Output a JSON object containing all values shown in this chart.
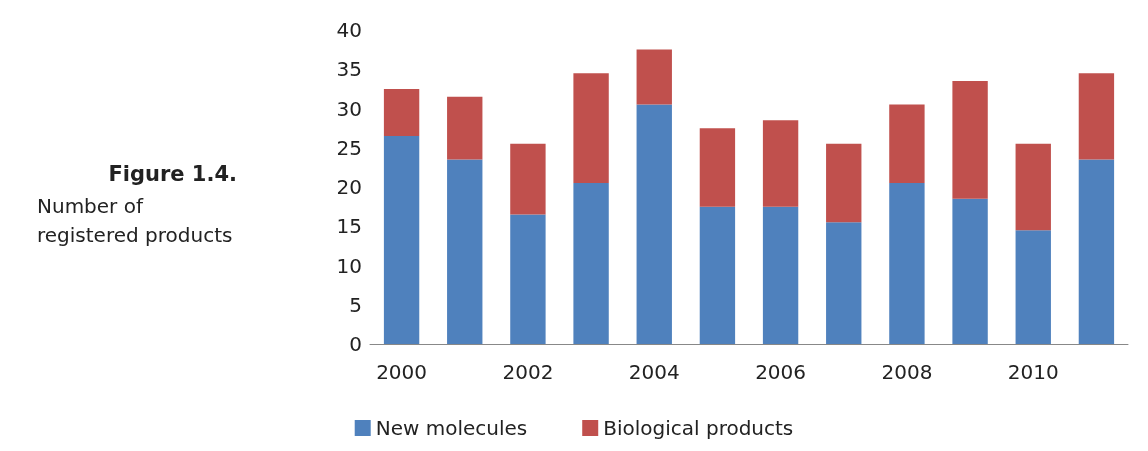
{
  "chart_data": {
    "type": "bar",
    "title": "Figure 1.4.",
    "subtitle": "Number of registered products",
    "stacked": true,
    "categories": [
      "2000",
      null,
      "2002",
      null,
      "2004",
      null,
      "2006",
      null,
      "2008",
      null,
      "2010",
      null
    ],
    "series": [
      {
        "name": "New molecules",
        "color": "#4f81bd",
        "values": [
          26.5,
          23.5,
          16.5,
          20.5,
          30.5,
          17.5,
          17.5,
          15.5,
          20.5,
          18.5,
          14.5,
          23.5
        ]
      },
      {
        "name": "Biological products",
        "color": "#c0504d",
        "values": [
          6,
          8,
          9,
          14,
          7,
          10,
          11,
          10,
          10,
          15,
          11,
          11
        ]
      }
    ],
    "ylim": [
      0,
      40
    ],
    "yticks": [
      0,
      5,
      10,
      15,
      20,
      25,
      30,
      35,
      40
    ],
    "grid": false,
    "legend": "bottom"
  }
}
